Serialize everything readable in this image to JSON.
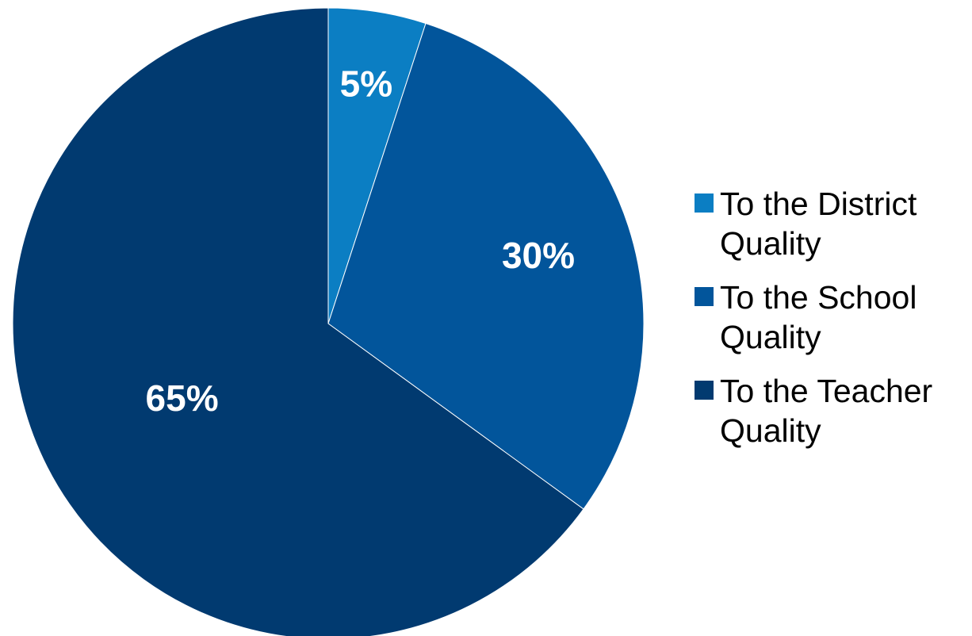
{
  "chart_data": {
    "type": "pie",
    "title": "",
    "start_angle": "12 o'clock",
    "direction": "clockwise",
    "slices": [
      {
        "label": "To the District Quality",
        "legend_lines": [
          "To the District",
          "Quality"
        ],
        "value": 5,
        "data_label": "5%",
        "color": "#0b7ec3"
      },
      {
        "label": "To the School Quality",
        "legend_lines": [
          "To the School",
          "Quality"
        ],
        "value": 30,
        "data_label": "30%",
        "color": "#02559b"
      },
      {
        "label": "To the Teacher Quality",
        "legend_lines": [
          "To the Teacher",
          "Quality"
        ],
        "value": 65,
        "data_label": "65%",
        "color": "#013a70"
      }
    ],
    "legend_position": "right"
  }
}
